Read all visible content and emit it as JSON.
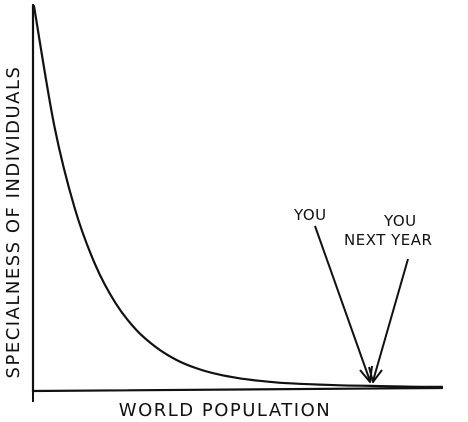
{
  "chart_data": {
    "type": "line",
    "title": "",
    "xlabel": "WORLD POPULATION",
    "ylabel": "SPECIALNESS OF INDIVIDUALS",
    "grid": false,
    "legend": "none",
    "colors": {
      "line": "#111111",
      "background": "#ffffff"
    },
    "series": [
      {
        "x": [
          0,
          0.05,
          0.1,
          0.15,
          0.2,
          0.25,
          0.3,
          0.35,
          0.4,
          0.45,
          0.5,
          0.55,
          0.6,
          0.65,
          0.7,
          0.75,
          0.8,
          0.85,
          0.9,
          0.95,
          1.0
        ],
        "values": [
          1.0,
          0.685,
          0.47,
          0.323,
          0.222,
          0.153,
          0.106,
          0.073,
          0.051,
          0.036,
          0.026,
          0.019,
          0.014,
          0.011,
          0.009,
          0.007,
          0.006,
          0.005,
          0.004,
          0.003,
          0.003
        ]
      }
    ],
    "annotations": [
      {
        "lines": [
          "YOU"
        ],
        "x": 0.83,
        "y": 0.01
      },
      {
        "lines": [
          "YOU",
          "NEXT YEAR"
        ],
        "x": 0.84,
        "y": 0.008
      }
    ]
  }
}
